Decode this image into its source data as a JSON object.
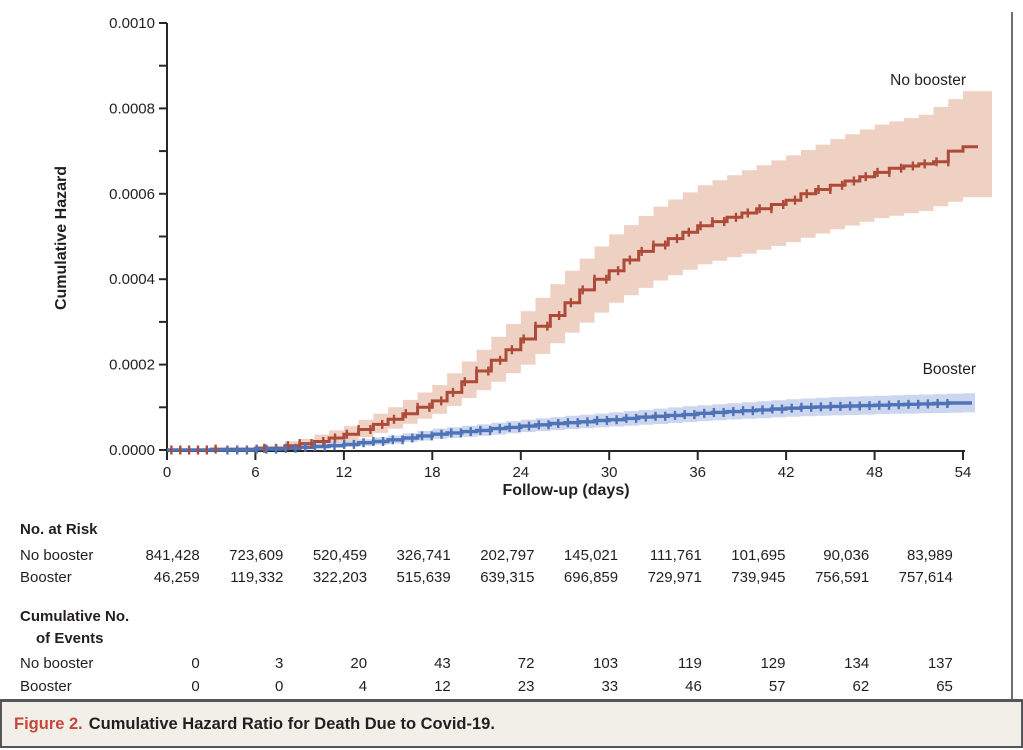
{
  "figure": {
    "label": "Figure 2.",
    "caption": "Cumulative Hazard Ratio for Death Due to Covid-19."
  },
  "chart_data": {
    "type": "line",
    "subtype": "step-cumulative-hazard-with-confidence-bands",
    "xlabel": "Follow-up (days)",
    "ylabel": "Cumulative Hazard",
    "xlim": [
      0,
      54
    ],
    "ylim": [
      0,
      0.001
    ],
    "xticks": [
      0,
      6,
      12,
      18,
      24,
      30,
      36,
      42,
      48,
      54
    ],
    "ytick_labels": [
      "0.0000",
      "0.0002",
      "0.0004",
      "0.0006",
      "0.0008",
      "0.0010"
    ],
    "ytick_minor_step": 0.0001,
    "grid": false,
    "legend_position": "inline-labels",
    "value_scale": 1e-06,
    "series": [
      {
        "name": "No booster",
        "color": "#ad4a38",
        "band_color": "#ecccbc",
        "points": [
          [
            0,
            0
          ],
          [
            3,
            2
          ],
          [
            6,
            4
          ],
          [
            8,
            10
          ],
          [
            9,
            15
          ],
          [
            10,
            20
          ],
          [
            11,
            28
          ],
          [
            12,
            37
          ],
          [
            13,
            48
          ],
          [
            14,
            60
          ],
          [
            15,
            72
          ],
          [
            16,
            85
          ],
          [
            17,
            100
          ],
          [
            18,
            115
          ],
          [
            19,
            135
          ],
          [
            20,
            160
          ],
          [
            21,
            185
          ],
          [
            22,
            210
          ],
          [
            23,
            235
          ],
          [
            24,
            260
          ],
          [
            25,
            290
          ],
          [
            26,
            315
          ],
          [
            27,
            345
          ],
          [
            28,
            375
          ],
          [
            29,
            400
          ],
          [
            30,
            420
          ],
          [
            31,
            445
          ],
          [
            32,
            465
          ],
          [
            33,
            480
          ],
          [
            34,
            495
          ],
          [
            35,
            510
          ],
          [
            36,
            525
          ],
          [
            37,
            535
          ],
          [
            38,
            545
          ],
          [
            39,
            555
          ],
          [
            40,
            565
          ],
          [
            41,
            575
          ],
          [
            42,
            585
          ],
          [
            43,
            600
          ],
          [
            44,
            610
          ],
          [
            45,
            620
          ],
          [
            46,
            630
          ],
          [
            47,
            640
          ],
          [
            48,
            650
          ],
          [
            49,
            660
          ],
          [
            50,
            665
          ],
          [
            51,
            670
          ],
          [
            52,
            675
          ],
          [
            53,
            700
          ],
          [
            54,
            710
          ]
        ],
        "band": [
          [
            0,
            0,
            0
          ],
          [
            6,
            1,
            10
          ],
          [
            9,
            6,
            26
          ],
          [
            12,
            20,
            56
          ],
          [
            15,
            50,
            100
          ],
          [
            18,
            85,
            152
          ],
          [
            21,
            140,
            235
          ],
          [
            24,
            200,
            325
          ],
          [
            27,
            275,
            420
          ],
          [
            30,
            345,
            505
          ],
          [
            33,
            397,
            570
          ],
          [
            36,
            435,
            620
          ],
          [
            39,
            460,
            655
          ],
          [
            42,
            487,
            690
          ],
          [
            45,
            517,
            728
          ],
          [
            48,
            543,
            762
          ],
          [
            51,
            560,
            785
          ],
          [
            54,
            592,
            840
          ]
        ],
        "censor_segments": [
          [
            0.3,
            3.4,
            0.6
          ],
          [
            6.6,
            53.6,
            0.8
          ]
        ]
      },
      {
        "name": "Booster",
        "color": "#4e73b6",
        "band_color": "#c6d1ec",
        "points": [
          [
            0,
            0
          ],
          [
            6,
            2
          ],
          [
            8,
            4
          ],
          [
            9,
            6
          ],
          [
            10,
            8
          ],
          [
            11,
            10
          ],
          [
            12,
            13
          ],
          [
            13,
            17
          ],
          [
            14,
            20
          ],
          [
            15,
            24
          ],
          [
            16,
            28
          ],
          [
            17,
            33
          ],
          [
            18,
            37
          ],
          [
            19,
            40
          ],
          [
            20,
            43
          ],
          [
            21,
            46
          ],
          [
            22,
            50
          ],
          [
            23,
            53
          ],
          [
            24,
            56
          ],
          [
            25,
            59
          ],
          [
            26,
            62
          ],
          [
            27,
            64
          ],
          [
            28,
            66
          ],
          [
            29,
            69
          ],
          [
            30,
            71
          ],
          [
            31,
            74
          ],
          [
            32,
            77
          ],
          [
            33,
            79
          ],
          [
            34,
            81
          ],
          [
            35,
            83
          ],
          [
            36,
            86
          ],
          [
            37,
            88
          ],
          [
            38,
            90
          ],
          [
            39,
            92
          ],
          [
            40,
            94
          ],
          [
            41,
            96
          ],
          [
            42,
            98
          ],
          [
            43,
            100
          ],
          [
            44,
            101
          ],
          [
            45,
            102
          ],
          [
            46,
            103
          ],
          [
            47,
            104
          ],
          [
            48,
            105
          ],
          [
            49,
            106
          ],
          [
            50,
            107
          ],
          [
            51,
            108
          ],
          [
            52,
            109
          ],
          [
            53,
            110
          ],
          [
            54,
            110
          ]
        ],
        "band": [
          [
            0,
            0,
            0
          ],
          [
            6,
            0,
            5
          ],
          [
            9,
            2,
            12
          ],
          [
            12,
            7,
            21
          ],
          [
            15,
            15,
            34
          ],
          [
            18,
            26,
            50
          ],
          [
            21,
            33,
            60
          ],
          [
            24,
            42,
            71
          ],
          [
            27,
            49,
            80
          ],
          [
            30,
            55,
            88
          ],
          [
            33,
            61,
            97
          ],
          [
            36,
            68,
            105
          ],
          [
            39,
            73,
            112
          ],
          [
            42,
            78,
            119
          ],
          [
            45,
            81,
            124
          ],
          [
            48,
            84,
            127
          ],
          [
            51,
            86,
            130
          ],
          [
            54,
            88,
            133
          ]
        ],
        "censor_segments": [
          [
            4.1,
            53.4,
            0.66
          ]
        ]
      }
    ]
  },
  "risk_table": {
    "title": "No. at Risk",
    "rows": [
      {
        "label": "No booster",
        "values": [
          "841,428",
          "723,609",
          "520,459",
          "326,741",
          "202,797",
          "145,021",
          "111,761",
          "101,695",
          "90,036",
          "83,989"
        ]
      },
      {
        "label": "Booster",
        "values": [
          "46,259",
          "119,332",
          "322,203",
          "515,639",
          "639,315",
          "696,859",
          "729,971",
          "739,945",
          "756,591",
          "757,614"
        ]
      }
    ]
  },
  "events_table": {
    "title_line1": "Cumulative No.",
    "title_line2": "of Events",
    "rows": [
      {
        "label": "No booster",
        "values": [
          "0",
          "3",
          "20",
          "43",
          "72",
          "103",
          "119",
          "129",
          "134",
          "137"
        ]
      },
      {
        "label": "Booster",
        "values": [
          "0",
          "0",
          "4",
          "12",
          "23",
          "33",
          "46",
          "57",
          "62",
          "65"
        ]
      }
    ]
  }
}
